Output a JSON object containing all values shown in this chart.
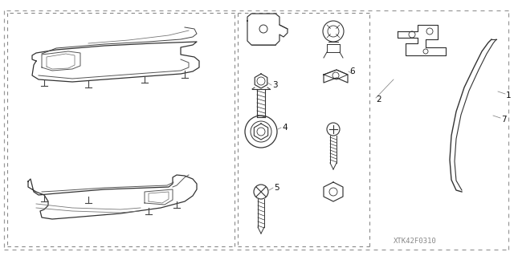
{
  "watermark": "XTK42F0310",
  "bg_color": "#ffffff",
  "line_color": "#333333",
  "label_color": "#111111",
  "label_fontsize": 7.5
}
